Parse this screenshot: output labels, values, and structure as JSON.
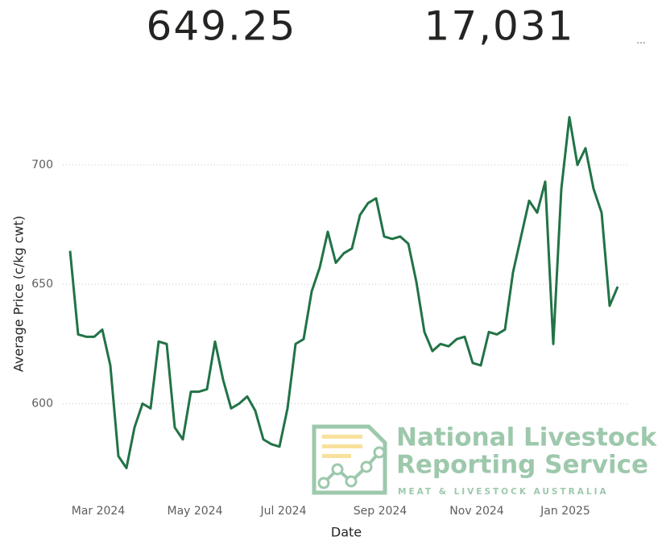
{
  "kpis": [
    "649.25",
    "17,031"
  ],
  "watermark": {
    "line1": "National Livestock",
    "line2": "Reporting Service",
    "line3": "MEAT & LIVESTOCK AUSTRALIA"
  },
  "chart_data": {
    "type": "line",
    "x_label": "Date",
    "y_label": "Average Price (c/kg cwt)",
    "categories": [
      null,
      null,
      null,
      "Mar 2024",
      null,
      null,
      null,
      null,
      null,
      null,
      null,
      null,
      null,
      null,
      null,
      "May 2024",
      null,
      null,
      null,
      null,
      null,
      null,
      null,
      null,
      null,
      null,
      "Jul 2024",
      null,
      null,
      null,
      null,
      null,
      null,
      null,
      null,
      null,
      null,
      null,
      "Sep 2024",
      null,
      null,
      null,
      null,
      null,
      null,
      null,
      null,
      null,
      null,
      null,
      "Nov 2024",
      null,
      null,
      null,
      null,
      null,
      null,
      null,
      null,
      null,
      null,
      "Jan 2025",
      null,
      null,
      null,
      null,
      null,
      null,
      null
    ],
    "series": [
      {
        "name": "Average Price",
        "color": "#217346",
        "values": [
          664,
          629,
          628,
          628,
          631,
          616,
          578,
          573,
          590,
          600,
          598,
          626,
          625,
          590,
          585,
          605,
          605,
          606,
          626,
          610,
          598,
          600,
          603,
          597,
          585,
          583,
          582,
          598,
          625,
          627,
          647,
          657,
          672,
          659,
          663,
          665,
          679,
          684,
          686,
          670,
          669,
          670,
          667,
          651,
          630,
          622,
          625,
          624,
          627,
          628,
          617,
          616,
          630,
          629,
          631,
          655,
          670,
          685,
          680,
          693,
          625,
          690,
          720,
          700,
          707,
          690,
          680,
          641,
          649
        ]
      }
    ],
    "ylim": [
      560,
      732
    ],
    "yticks": [
      600,
      650,
      700
    ],
    "grid": true
  }
}
